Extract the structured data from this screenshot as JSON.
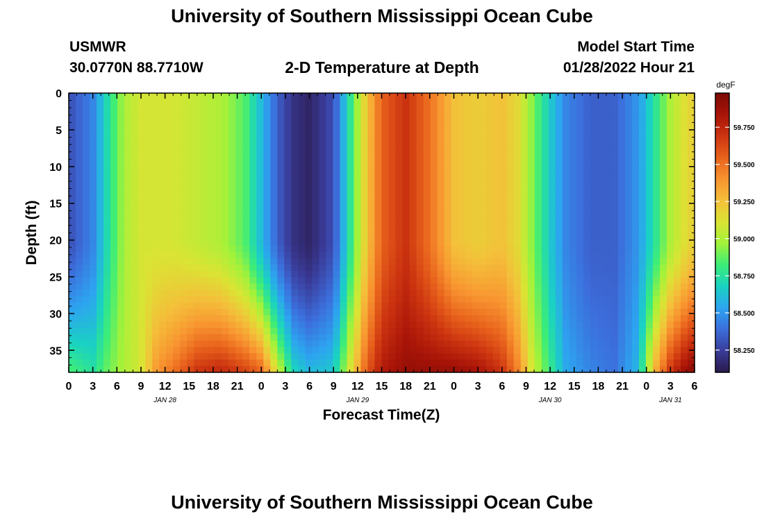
{
  "title": "University of Southern Mississippi Ocean Cube",
  "footer_title": "University of Southern Mississippi Ocean Cube",
  "station": {
    "name": "USMWR",
    "coords": "30.0770N  88.7710W"
  },
  "plot_title": "2-D Temperature at Depth",
  "model": {
    "label": "Model Start Time",
    "time": "01/28/2022 Hour 21"
  },
  "chart_data": {
    "type": "heatmap",
    "title": "2-D Temperature at Depth",
    "xlabel": "Forecast Time(Z)",
    "ylabel": "Depth (ft)",
    "x_tick_labels": [
      "0",
      "3",
      "6",
      "9",
      "12",
      "15",
      "18",
      "21",
      "0",
      "3",
      "6",
      "9",
      "12",
      "15",
      "18",
      "21",
      "0",
      "3",
      "6",
      "9",
      "12",
      "15",
      "18",
      "21",
      "0",
      "3",
      "6"
    ],
    "date_labels": [
      {
        "label": "JAN 28",
        "tick_index": 4
      },
      {
        "label": "JAN 29",
        "tick_index": 12
      },
      {
        "label": "JAN 30",
        "tick_index": 20
      },
      {
        "label": "JAN 31",
        "tick_index": 25
      }
    ],
    "y_ticks": [
      0,
      5,
      10,
      15,
      20,
      25,
      30,
      35
    ],
    "ylim": [
      0,
      38
    ],
    "y_inverted": true,
    "colorbar": {
      "unit": "degF",
      "ticks": [
        "58.250",
        "58.500",
        "58.750",
        "59.000",
        "59.250",
        "59.500",
        "59.750"
      ],
      "range": [
        58.1,
        59.98
      ],
      "colors": [
        "#2a1a4a",
        "#3a3c9a",
        "#3c6edc",
        "#2da4f0",
        "#1ad2c2",
        "#3ced78",
        "#a2f23a",
        "#dae434",
        "#f4bf3a",
        "#f89430",
        "#e8621c",
        "#cc3410",
        "#a81408",
        "#7c0a04"
      ]
    },
    "x_range_hours": [
      0,
      78
    ],
    "depth_range_ft": [
      0,
      38
    ],
    "temperature_sections": [
      {
        "time_h": 0,
        "surface": 58.3,
        "bottom": 58.85
      },
      {
        "time_h": 3,
        "surface": 58.45,
        "bottom": 58.75
      },
      {
        "time_h": 5,
        "surface": 58.75,
        "bottom": 58.9
      },
      {
        "time_h": 7,
        "surface": 59.0,
        "bottom": 59.0
      },
      {
        "time_h": 9,
        "surface": 59.1,
        "bottom": 59.1
      },
      {
        "time_h": 11,
        "surface": 59.1,
        "bottom": 59.4
      },
      {
        "time_h": 13,
        "surface": 59.1,
        "bottom": 59.5
      },
      {
        "time_h": 16,
        "surface": 59.05,
        "bottom": 59.7
      },
      {
        "time_h": 19,
        "surface": 59.0,
        "bottom": 59.75
      },
      {
        "time_h": 22,
        "surface": 58.85,
        "bottom": 59.65
      },
      {
        "time_h": 24,
        "surface": 58.6,
        "bottom": 59.55
      },
      {
        "time_h": 26,
        "surface": 58.35,
        "bottom": 59.1
      },
      {
        "time_h": 28,
        "surface": 58.2,
        "bottom": 58.7
      },
      {
        "time_h": 30,
        "surface": 58.15,
        "bottom": 58.6
      },
      {
        "time_h": 33,
        "surface": 58.3,
        "bottom": 58.65
      },
      {
        "time_h": 35,
        "surface": 58.75,
        "bottom": 59.1
      },
      {
        "time_h": 37,
        "surface": 59.2,
        "bottom": 59.55
      },
      {
        "time_h": 39,
        "surface": 59.55,
        "bottom": 59.8
      },
      {
        "time_h": 42,
        "surface": 59.7,
        "bottom": 59.9
      },
      {
        "time_h": 45,
        "surface": 59.5,
        "bottom": 59.9
      },
      {
        "time_h": 48,
        "surface": 59.25,
        "bottom": 59.9
      },
      {
        "time_h": 51,
        "surface": 59.2,
        "bottom": 59.85
      },
      {
        "time_h": 54,
        "surface": 59.25,
        "bottom": 59.7
      },
      {
        "time_h": 56,
        "surface": 59.15,
        "bottom": 59.45
      },
      {
        "time_h": 58,
        "surface": 58.9,
        "bottom": 59.05
      },
      {
        "time_h": 60,
        "surface": 58.65,
        "bottom": 58.8
      },
      {
        "time_h": 62,
        "surface": 58.45,
        "bottom": 58.55
      },
      {
        "time_h": 65,
        "surface": 58.35,
        "bottom": 58.45
      },
      {
        "time_h": 68,
        "surface": 58.35,
        "bottom": 58.4
      },
      {
        "time_h": 71,
        "surface": 58.5,
        "bottom": 58.6
      },
      {
        "time_h": 73,
        "surface": 58.75,
        "bottom": 59.3
      },
      {
        "time_h": 75,
        "surface": 59.0,
        "bottom": 59.7
      },
      {
        "time_h": 77,
        "surface": 59.15,
        "bottom": 59.9
      },
      {
        "time_h": 78,
        "surface": 59.2,
        "bottom": 59.95
      }
    ]
  }
}
